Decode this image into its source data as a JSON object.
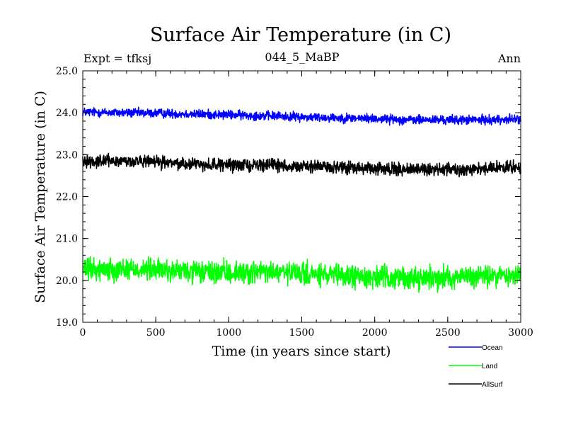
{
  "chart_data": {
    "type": "line",
    "title": "Surface Air Temperature (in C)",
    "subtitle": "044_5_MaBP",
    "left_label": "Expt = tfksj",
    "right_label": "Ann",
    "xlabel": "Time (in years since start)",
    "ylabel": "Surface Air Temperature (in C)",
    "xlim": [
      0,
      3000
    ],
    "ylim": [
      19.0,
      25.0
    ],
    "x_ticks": [
      0,
      500,
      1000,
      1500,
      2000,
      2500,
      3000
    ],
    "x_tick_labels": [
      "0",
      "500",
      "1000",
      "1500",
      "2000",
      "2500",
      "3000"
    ],
    "y_ticks": [
      19.0,
      20.0,
      21.0,
      22.0,
      23.0,
      24.0,
      25.0
    ],
    "y_tick_labels": [
      "19.0",
      "20.0",
      "21.0",
      "22.0",
      "23.0",
      "24.0",
      "25.0"
    ],
    "grid": false,
    "legend_position": "bottom-right",
    "series": [
      {
        "name": "Ocean",
        "color": "#0000ff",
        "x": [
          0,
          250,
          500,
          750,
          1000,
          1250,
          1500,
          1750,
          2000,
          2250,
          2500,
          2750,
          3000
        ],
        "values": [
          24.02,
          24.0,
          23.99,
          23.97,
          23.95,
          23.93,
          23.9,
          23.88,
          23.86,
          23.83,
          23.83,
          23.83,
          23.85
        ],
        "noise_amplitude": 0.09
      },
      {
        "name": "Land",
        "color": "#00ff00",
        "x": [
          0,
          250,
          500,
          750,
          1000,
          1250,
          1500,
          1750,
          2000,
          2250,
          2500,
          2750,
          3000
        ],
        "values": [
          20.25,
          20.28,
          20.25,
          20.2,
          20.18,
          20.2,
          20.15,
          20.1,
          20.08,
          20.05,
          20.08,
          20.1,
          20.12
        ],
        "noise_amplitude": 0.22
      },
      {
        "name": "AllSurf",
        "color": "#000000",
        "x": [
          0,
          250,
          500,
          750,
          1000,
          1250,
          1500,
          1750,
          2000,
          2250,
          2500,
          2750,
          3000
        ],
        "values": [
          22.85,
          22.85,
          22.82,
          22.78,
          22.75,
          22.76,
          22.72,
          22.7,
          22.65,
          22.65,
          22.65,
          22.67,
          22.7
        ],
        "noise_amplitude": 0.12
      }
    ]
  }
}
